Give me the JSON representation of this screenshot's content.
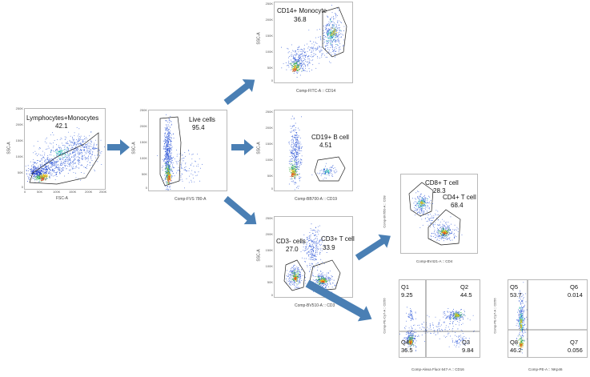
{
  "arrow_color": "#4a7fb4",
  "plots": [
    {
      "id": "p1",
      "gates": [
        {
          "name": "Lymphocytes+Monocytes",
          "value": "42.1"
        }
      ],
      "xlabel": "FSC-A",
      "ylabel": "SSC-A",
      "xticks": [
        "0",
        "50K",
        "100K",
        "150K",
        "200K",
        "250K"
      ],
      "yticks": [
        "0",
        "50K",
        "100K",
        "150K",
        "200K",
        "250K"
      ]
    },
    {
      "id": "p2",
      "gates": [
        {
          "name": "Live cells",
          "value": "95.4"
        }
      ],
      "xlabel": "Comp-FVS 780-A",
      "ylabel": "SSC-A",
      "yticks": [
        "0",
        "50K",
        "100K",
        "150K",
        "200K",
        "250K"
      ]
    },
    {
      "id": "p3",
      "gates": [
        {
          "name": "CD14+ Monocyte",
          "value": "36.8"
        }
      ],
      "xlabel": "Comp-FITC-A :: CD14",
      "ylabel": "SSC-A",
      "yticks": [
        "0",
        "50K",
        "100K",
        "150K",
        "200K",
        "250K"
      ]
    },
    {
      "id": "p4",
      "gates": [
        {
          "name": "CD19+ B cell",
          "value": "4.51"
        }
      ],
      "xlabel": "Comp-BB700-A :: CD19",
      "ylabel": "SSC-A",
      "yticks": [
        "0",
        "50K",
        "100K",
        "150K",
        "200K",
        "250K"
      ]
    },
    {
      "id": "p5",
      "gates": [
        {
          "name": "CD3- cells",
          "value": "27.0"
        },
        {
          "name": "CD3+ T cell",
          "value": "33.9"
        }
      ],
      "xlabel": "Comp-BV510-A :: CD3",
      "ylabel": "SSC-A",
      "yticks": [
        "0",
        "50K",
        "100K",
        "150K",
        "200K",
        "250K"
      ]
    },
    {
      "id": "p6",
      "gates": [
        {
          "name": "CD8+ T cell",
          "value": "28.3"
        },
        {
          "name": "CD4+ T cell",
          "value": "68.4"
        }
      ],
      "xlabel": "Comp-BV421-A :: CD4",
      "ylabel": "Comp-BV650-A :: CD8"
    },
    {
      "id": "p7",
      "quadrants": [
        {
          "name": "Q1",
          "value": "9.25"
        },
        {
          "name": "Q2",
          "value": "44.5"
        },
        {
          "name": "Q3",
          "value": "9.84"
        },
        {
          "name": "Q4",
          "value": "36.5"
        }
      ],
      "xlabel": "Comp-Alexa Fluor 647-A :: CD16",
      "ylabel": "Comp-PE-Cy7-A :: CD56"
    },
    {
      "id": "p8",
      "quadrants": [
        {
          "name": "Q5",
          "value": "53.7"
        },
        {
          "name": "Q6",
          "value": "0.014"
        },
        {
          "name": "Q7",
          "value": "0.056"
        },
        {
          "name": "Q8",
          "value": "46.2"
        }
      ],
      "xlabel": "Comp-PE-A :: NKp46",
      "ylabel": "Comp-PE-Cy7-A :: CD56"
    }
  ]
}
